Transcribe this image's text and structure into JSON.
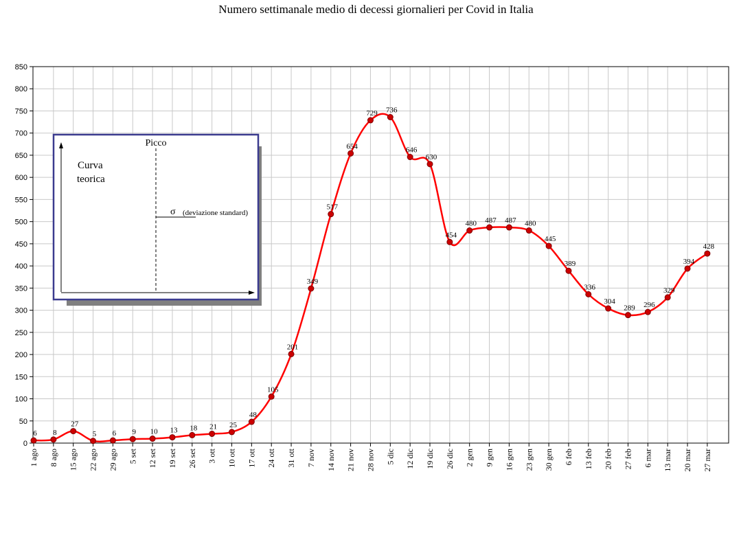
{
  "chart_data": {
    "type": "line",
    "title": "Numero settimanale medio di decessi giornalieri per Covid in Italia",
    "xlabel": "",
    "ylabel": "",
    "ylim": [
      0,
      850
    ],
    "yticks": [
      0,
      50,
      100,
      150,
      200,
      250,
      300,
      350,
      400,
      450,
      500,
      550,
      600,
      650,
      700,
      750,
      800,
      850
    ],
    "grid": true,
    "categories": [
      "1 ago",
      "8 ago",
      "15 ago",
      "22 ago",
      "29 ago",
      "5 set",
      "12 set",
      "19 set",
      "26 set",
      "3 ott",
      "10 ott",
      "17 ott",
      "24 ott",
      "31 ott",
      "7 nov",
      "14 nov",
      "21 nov",
      "28 nov",
      "5 dic",
      "12 dic",
      "19 dic",
      "26 dic",
      "2 gen",
      "9 gen",
      "16 gen",
      "23 gen",
      "30 gen",
      "6 feb",
      "13 feb",
      "20 feb",
      "27 feb",
      "6 mar",
      "13 mar",
      "20 mar",
      "27 mar"
    ],
    "series": [
      {
        "values": [
          6,
          8,
          27,
          5,
          6,
          9,
          10,
          13,
          18,
          21,
          25,
          48,
          105,
          201,
          349,
          517,
          654,
          729,
          736,
          646,
          630,
          454,
          480,
          487,
          487,
          480,
          445,
          389,
          336,
          304,
          289,
          296,
          329,
          394,
          428
        ],
        "color": "#ff0000",
        "marker_color": "#cc0000"
      }
    ],
    "inset": {
      "peak_label": "Picco",
      "curve_label_line1": "Curva",
      "curve_label_line2": "teorica",
      "sigma_symbol": "σ",
      "sigma_label": "(deviazione standard)",
      "border_color": "#3b3b8f",
      "curve_color": "#a0282d",
      "shadow_color": "#808080"
    },
    "colors": {
      "grid": "#c8c8c8",
      "axis": "#000000"
    }
  }
}
